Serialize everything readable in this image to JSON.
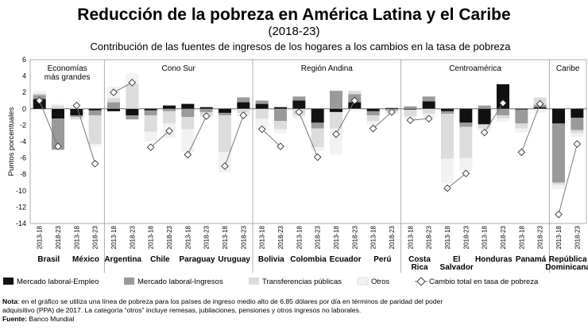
{
  "header": {
    "title": "Reducción de la pobreza en América Latina y el Caribe",
    "years": "(2018-23)",
    "subtitle": "Contribución de las fuentes de ingresos de los hogares a los cambios en la tasa de pobreza"
  },
  "colors": {
    "empleo": "#111111",
    "ingresos": "#9a9a9a",
    "transferencias": "#dcdcdc",
    "otros": "#f2f2f2",
    "total_line": "#777777",
    "divider": "#999999"
  },
  "chart_data": {
    "type": "bar",
    "stacked": true,
    "ylabel": "Puntos porcentuales",
    "ylim": [
      -14,
      6
    ],
    "yticks": [
      6,
      4,
      2,
      0,
      -2,
      -4,
      -6,
      -8,
      -10,
      -12,
      -14
    ],
    "series_names": [
      "Mercado laboral-Empleo",
      "Mercado laboral-Ingresos",
      "Transferencias públicas",
      "Otros",
      "Cambio total en tasa de pobreza"
    ],
    "groups": [
      {
        "name": "Economías\nmás grandes",
        "countries": [
          "Brasil",
          "México"
        ]
      },
      {
        "name": "Cono Sur",
        "countries": [
          "Argentina",
          "Chile",
          "Paraguay",
          "Uruguay"
        ]
      },
      {
        "name": "Región Andina",
        "countries": [
          "Bolivia",
          "Colombia",
          "Ecuador",
          "Perú"
        ]
      },
      {
        "name": "Centroamérica",
        "countries": [
          "Costa\nRica",
          "El\nSalvador",
          "Honduras",
          "Panamá"
        ]
      },
      {
        "name": "Caribe",
        "countries": [
          "República\nDominicana"
        ]
      }
    ],
    "periods": [
      "2013-18",
      "2018-23"
    ],
    "countries": [
      {
        "name": "Brasil",
        "bars": [
          {
            "empleo": 1.2,
            "ingresos": 0.5,
            "transferencias": 0.2,
            "otros": 0.3,
            "total": 1.0
          },
          {
            "empleo": -1.2,
            "ingresos": -3.8,
            "transferencias": 0.4,
            "otros": 0.2,
            "total": -4.6
          }
        ]
      },
      {
        "name": "México",
        "bars": [
          {
            "empleo": -0.8,
            "ingresos": -0.2,
            "transferencias": -0.3,
            "otros": 0.2,
            "total": 0.4
          },
          {
            "empleo": -0.2,
            "ingresos": -0.6,
            "transferencias": -3.5,
            "otros": -0.3,
            "total": -6.7
          }
        ]
      },
      {
        "name": "Argentina",
        "bars": [
          {
            "empleo": -0.3,
            "ingresos": 0.8,
            "transferencias": 0.5,
            "otros": 1.4,
            "total": 2.0
          },
          {
            "empleo": -0.8,
            "ingresos": -0.5,
            "transferencias": 3.0,
            "otros": 1.3,
            "total": 3.2
          }
        ]
      },
      {
        "name": "Chile",
        "bars": [
          {
            "empleo": -0.2,
            "ingresos": -0.6,
            "transferencias": -2.0,
            "otros": -1.2,
            "total": -4.7
          },
          {
            "empleo": 0.4,
            "ingresos": -0.3,
            "transferencias": -1.5,
            "otros": -1.8,
            "total": -2.7
          }
        ]
      },
      {
        "name": "Paraguay",
        "bars": [
          {
            "empleo": 0.6,
            "ingresos": -1.0,
            "transferencias": -1.5,
            "otros": -2.8,
            "total": -5.6
          },
          {
            "empleo": 0.2,
            "ingresos": -0.4,
            "transferencias": -0.5,
            "otros": -0.3,
            "total": -0.9
          }
        ]
      },
      {
        "name": "Uruguay",
        "bars": [
          {
            "empleo": -0.5,
            "ingresos": -0.3,
            "transferencias": -4.5,
            "otros": -2.5,
            "total": -7.0
          },
          {
            "empleo": 0.8,
            "ingresos": 0.6,
            "transferencias": -0.5,
            "otros": -0.4,
            "total": -0.8
          }
        ]
      },
      {
        "name": "Bolivia",
        "bars": [
          {
            "empleo": 0.6,
            "ingresos": 0.4,
            "transferencias": -1.2,
            "otros": -1.3,
            "total": -2.5
          },
          {
            "empleo": 0.2,
            "ingresos": -1.5,
            "transferencias": -1.0,
            "otros": -0.5,
            "total": -4.6
          }
        ]
      },
      {
        "name": "Colombia",
        "bars": [
          {
            "empleo": 1.0,
            "ingresos": 0.5,
            "transferencias": -0.8,
            "otros": -0.4,
            "total": -0.4
          },
          {
            "empleo": -1.7,
            "ingresos": -0.7,
            "transferencias": -2.3,
            "otros": -0.4,
            "total": -5.9
          }
        ]
      },
      {
        "name": "Ecuador",
        "bars": [
          {
            "empleo": -0.4,
            "ingresos": 2.2,
            "transferencias": -2.0,
            "otros": -3.2,
            "total": -3.1
          },
          {
            "empleo": 0.8,
            "ingresos": 1.0,
            "transferencias": 0.4,
            "otros": -0.3,
            "total": 1.0
          }
        ]
      },
      {
        "name": "Perú",
        "bars": [
          {
            "empleo": -0.3,
            "ingresos": -0.5,
            "transferencias": -0.7,
            "otros": -0.5,
            "total": -2.4
          },
          {
            "empleo": 0.1,
            "ingresos": -0.2,
            "transferencias": -0.2,
            "otros": -0.3,
            "total": -0.4
          }
        ]
      },
      {
        "name": "Costa\nRica",
        "bars": [
          {
            "empleo": -0.1,
            "ingresos": 0.3,
            "transferencias": -0.8,
            "otros": -0.4,
            "total": -1.4
          },
          {
            "empleo": 0.9,
            "ingresos": 0.6,
            "transferencias": -0.6,
            "otros": -0.5,
            "total": -1.2
          }
        ]
      },
      {
        "name": "El\nSalvador",
        "bars": [
          {
            "empleo": -0.3,
            "ingresos": -0.3,
            "transferencias": -5.5,
            "otros": -3.0,
            "total": -9.7
          },
          {
            "empleo": -1.7,
            "ingresos": -0.5,
            "transferencias": -3.8,
            "otros": -1.6,
            "total": -7.9
          }
        ]
      },
      {
        "name": "Honduras",
        "bars": [
          {
            "empleo": -1.9,
            "ingresos": 0.4,
            "transferencias": -0.5,
            "otros": -0.3,
            "total": -2.9
          },
          {
            "empleo": 3.0,
            "ingresos": -0.8,
            "transferencias": -0.4,
            "otros": -0.4,
            "total": 0.7
          }
        ]
      },
      {
        "name": "Panamá",
        "bars": [
          {
            "empleo": -0.1,
            "ingresos": -1.7,
            "transferencias": -0.6,
            "otros": -0.5,
            "total": -5.3
          },
          {
            "empleo": 0.2,
            "ingresos": 0.3,
            "transferencias": 0.9,
            "otros": -0.5,
            "total": 0.6
          }
        ]
      },
      {
        "name": "República\nDominicana",
        "bars": [
          {
            "empleo": -1.8,
            "ingresos": -7.2,
            "transferencias": -0.3,
            "otros": -0.5,
            "total": -12.9
          },
          {
            "empleo": -1.1,
            "ingresos": -1.5,
            "transferencias": -0.4,
            "otros": -0.4,
            "total": -4.3
          }
        ]
      }
    ]
  },
  "legend": [
    {
      "key": "empleo",
      "label": "Mercado laboral-Empleo",
      "kind": "box"
    },
    {
      "key": "ingresos",
      "label": "Mercado laboral-Ingresos",
      "kind": "box"
    },
    {
      "key": "transferencias",
      "label": "Transferencias públicas",
      "kind": "box"
    },
    {
      "key": "otros",
      "label": "Otros",
      "kind": "box"
    },
    {
      "key": "total",
      "label": "Cambio total en tasa de pobreza",
      "kind": "diamond"
    }
  ],
  "footer": {
    "note_label": "Nota",
    "note_line1": ": en el gráfico se utiliza una línea de pobreza para los países de ingreso medio alto de 6.85 dólares por día en términos de paridad del poder",
    "note_line2": "adquisitivo (PPA) de 2017. La categoría “otros” incluye remesas, jubilaciones, pensiones y otros ingresos no laborales.",
    "source_label": "Fuente:",
    "source_text": " Banco Mundial"
  }
}
